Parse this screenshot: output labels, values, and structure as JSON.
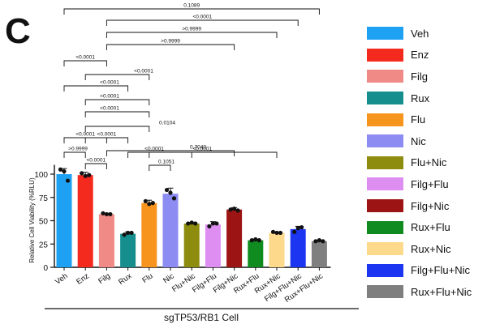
{
  "panel_label": "C",
  "chart_data": {
    "type": "bar",
    "title": "",
    "xlabel": "sgTP53/RB1 Cell",
    "ylabel": "Relative Cell Viability (%RLU)",
    "ylim": [
      0,
      100
    ],
    "yticks": [
      0,
      25,
      50,
      75,
      100
    ],
    "grid": false,
    "legend_position": "right",
    "categories": [
      "Veh",
      "Enz",
      "Filg",
      "Rux",
      "Flu",
      "Nic",
      "Flu+Nic",
      "Filg+Flu",
      "Filg+Nic",
      "Rux+Flu",
      "Rux+Nic",
      "Filg+Flu+Nic",
      "Rux+Flu+Nic"
    ],
    "values": [
      100,
      99,
      57,
      36,
      69,
      79,
      47,
      46,
      62,
      29,
      37,
      41,
      28
    ],
    "errors": [
      6,
      3,
      1,
      2,
      3,
      6,
      1,
      3,
      2,
      1,
      1,
      3,
      1
    ],
    "points": [
      [
        105,
        103,
        93
      ],
      [
        101,
        98,
        99
      ],
      [
        58,
        57,
        57
      ],
      [
        35,
        37,
        37
      ],
      [
        71,
        68,
        69
      ],
      [
        83,
        80,
        74
      ],
      [
        47,
        48,
        47
      ],
      [
        44,
        47,
        47
      ],
      [
        62,
        63,
        61
      ],
      [
        29,
        30,
        29
      ],
      [
        38,
        37,
        37
      ],
      [
        38,
        42,
        43
      ],
      [
        28,
        29,
        28
      ]
    ],
    "colors": [
      "#1ea1f2",
      "#f42a1e",
      "#f08a87",
      "#168e8e",
      "#f7941d",
      "#8c8cf2",
      "#8e8c0e",
      "#dd8ef0",
      "#9c1414",
      "#0f8b1f",
      "#fdd98c",
      "#1c35f0",
      "#7f7f7f"
    ],
    "comparisons": [
      {
        "from": "Veh",
        "to": "Rux+Flu+Nic",
        "p": "0.1089"
      },
      {
        "from": "Filg",
        "to": "Filg+Flu+Nic",
        "p": "<0.0001"
      },
      {
        "from": "Filg",
        "to": "Rux+Nic",
        "p": ">0.9999"
      },
      {
        "from": "Filg",
        "to": "Filg+Nic",
        "p": ">0.9999"
      },
      {
        "from": "Veh",
        "to": "Filg",
        "p": "<0.0001"
      },
      {
        "from": "Enz",
        "to": "Flu",
        "p": "<0.0001"
      },
      {
        "from": "Veh",
        "to": "Rux",
        "p": "<0.0001"
      },
      {
        "from": "Enz",
        "to": "Flu",
        "p": "<0.0001"
      },
      {
        "from": "Enz",
        "to": "Flu",
        "p": "<0.0001"
      },
      {
        "from": "Enz",
        "to": "Flu",
        "p": "0.0104"
      },
      {
        "from": "Veh",
        "to": "Filg",
        "p": "<0.0001"
      },
      {
        "from": "Filg",
        "to": "Filg+Nic",
        "p": "0.7040"
      },
      {
        "from": "Enz",
        "to": "Rux",
        "p": "<0.0001"
      },
      {
        "from": "Veh",
        "to": "Enz",
        "p": ">0.9999"
      },
      {
        "from": "Enz",
        "to": "Filg",
        "p": "<0.0001"
      },
      {
        "from": "Rux",
        "to": "Rux+Nic",
        "p": "<0.0001"
      },
      {
        "from": "Flu",
        "to": "Flu+Nic",
        "p": "<0.0001"
      },
      {
        "from": "Flu",
        "to": "Nic",
        "p": "0.1051"
      }
    ]
  }
}
